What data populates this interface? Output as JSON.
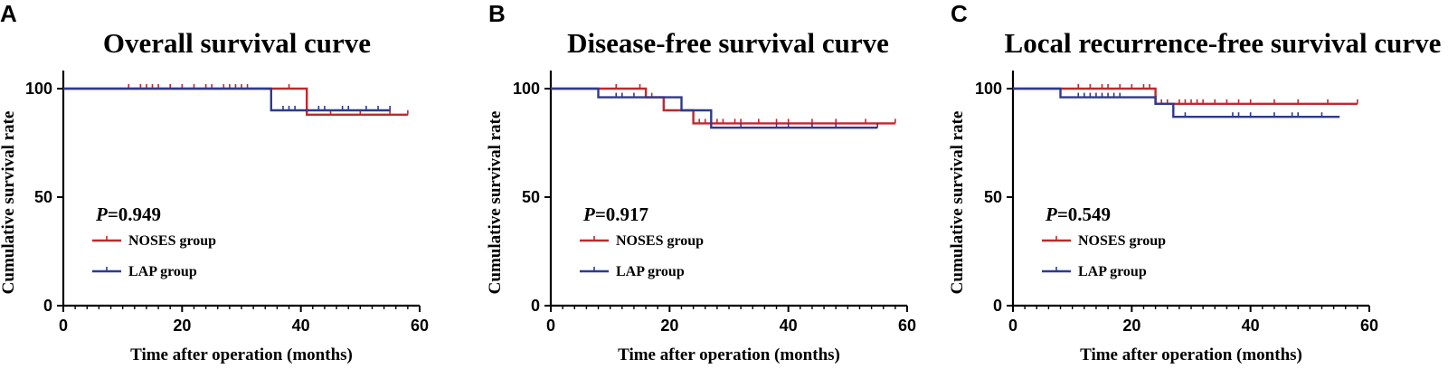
{
  "chart_data": [
    {
      "type": "line",
      "panel": "A",
      "title": "Overall survival curve",
      "xlabel": "Time after operation (months)",
      "ylabel": "Cumulative survival rate",
      "xlim": [
        0,
        60
      ],
      "ylim": [
        0,
        100
      ],
      "xticks": [
        0,
        20,
        40,
        60
      ],
      "yticks": [
        0,
        50,
        100
      ],
      "p_label": "P",
      "p_value": "=0.949",
      "legend": [
        "NOSES group",
        "LAP group"
      ],
      "series": [
        {
          "name": "NOSES group",
          "color": "#c0282d",
          "steps": [
            [
              0,
              100
            ],
            [
              41,
              100
            ],
            [
              41,
              88
            ],
            [
              58,
              88
            ]
          ],
          "censored": [
            [
              11,
              100
            ],
            [
              13,
              100
            ],
            [
              14,
              100
            ],
            [
              15,
              100
            ],
            [
              16,
              100
            ],
            [
              18,
              100
            ],
            [
              20,
              100
            ],
            [
              22,
              100
            ],
            [
              24,
              100
            ],
            [
              25,
              100
            ],
            [
              27,
              100
            ],
            [
              28,
              100
            ],
            [
              29,
              100
            ],
            [
              30,
              100
            ],
            [
              31,
              100
            ],
            [
              38,
              100
            ],
            [
              45,
              88
            ],
            [
              50,
              88
            ],
            [
              55,
              88
            ],
            [
              58,
              88
            ]
          ]
        },
        {
          "name": "LAP group",
          "color": "#2e3a8c",
          "steps": [
            [
              0,
              100
            ],
            [
              35,
              100
            ],
            [
              35,
              90
            ],
            [
              55,
              90
            ]
          ],
          "censored": [
            [
              37,
              90
            ],
            [
              38,
              90
            ],
            [
              39,
              90
            ],
            [
              43,
              90
            ],
            [
              44,
              90
            ],
            [
              47,
              90
            ],
            [
              48,
              90
            ],
            [
              51,
              90
            ],
            [
              53,
              90
            ],
            [
              55,
              90
            ]
          ]
        }
      ]
    },
    {
      "type": "line",
      "panel": "B",
      "title": "Disease-free survival curve",
      "xlabel": "Time after operation (months)",
      "ylabel": "Cumulative survival rate",
      "xlim": [
        0,
        60
      ],
      "ylim": [
        0,
        100
      ],
      "xticks": [
        0,
        20,
        40,
        60
      ],
      "yticks": [
        0,
        50,
        100
      ],
      "p_label": "P",
      "p_value": "=0.917",
      "legend": [
        "NOSES group",
        "LAP group"
      ],
      "series": [
        {
          "name": "NOSES group",
          "color": "#c0282d",
          "steps": [
            [
              0,
              100
            ],
            [
              16,
              100
            ],
            [
              16,
              96
            ],
            [
              19,
              96
            ],
            [
              19,
              90
            ],
            [
              24,
              90
            ],
            [
              24,
              84
            ],
            [
              58,
              84
            ]
          ],
          "censored": [
            [
              11,
              100
            ],
            [
              15,
              100
            ],
            [
              17,
              96
            ],
            [
              22,
              90
            ],
            [
              25,
              84
            ],
            [
              26,
              84
            ],
            [
              28,
              84
            ],
            [
              29,
              84
            ],
            [
              31,
              84
            ],
            [
              32,
              84
            ],
            [
              35,
              84
            ],
            [
              38,
              84
            ],
            [
              40,
              84
            ],
            [
              44,
              84
            ],
            [
              48,
              84
            ],
            [
              53,
              84
            ],
            [
              58,
              84
            ]
          ]
        },
        {
          "name": "LAP group",
          "color": "#2e3a8c",
          "steps": [
            [
              0,
              100
            ],
            [
              8,
              100
            ],
            [
              8,
              96
            ],
            [
              22,
              96
            ],
            [
              22,
              90
            ],
            [
              27,
              90
            ],
            [
              27,
              82
            ],
            [
              55,
              82
            ]
          ],
          "censored": [
            [
              11,
              96
            ],
            [
              12,
              96
            ],
            [
              14,
              96
            ],
            [
              22,
              93
            ],
            [
              27,
              82
            ],
            [
              32,
              82
            ],
            [
              38,
              82
            ],
            [
              40,
              82
            ],
            [
              44,
              82
            ],
            [
              48,
              82
            ],
            [
              55,
              82
            ]
          ]
        }
      ]
    },
    {
      "type": "line",
      "panel": "C",
      "title": "Local recurrence-free survival curve",
      "xlabel": "Time after operation (months)",
      "ylabel": "Cumulative survival rate",
      "xlim": [
        0,
        60
      ],
      "ylim": [
        0,
        100
      ],
      "xticks": [
        0,
        20,
        40,
        60
      ],
      "yticks": [
        0,
        50,
        100
      ],
      "p_label": "P",
      "p_value": "=0.549",
      "legend": [
        "NOSES group",
        "LAP group"
      ],
      "series": [
        {
          "name": "NOSES group",
          "color": "#c0282d",
          "steps": [
            [
              0,
              100
            ],
            [
              24,
              100
            ],
            [
              24,
              93
            ],
            [
              58,
              93
            ]
          ],
          "censored": [
            [
              11,
              100
            ],
            [
              13,
              100
            ],
            [
              15,
              100
            ],
            [
              16,
              100
            ],
            [
              18,
              100
            ],
            [
              20,
              100
            ],
            [
              22,
              100
            ],
            [
              23,
              100
            ],
            [
              25,
              93
            ],
            [
              26,
              93
            ],
            [
              28,
              93
            ],
            [
              29,
              93
            ],
            [
              30,
              93
            ],
            [
              31,
              93
            ],
            [
              32,
              93
            ],
            [
              34,
              93
            ],
            [
              36,
              93
            ],
            [
              38,
              93
            ],
            [
              40,
              93
            ],
            [
              44,
              93
            ],
            [
              48,
              93
            ],
            [
              53,
              93
            ],
            [
              58,
              93
            ]
          ]
        },
        {
          "name": "LAP group",
          "color": "#2e3a8c",
          "steps": [
            [
              0,
              100
            ],
            [
              8,
              100
            ],
            [
              8,
              96
            ],
            [
              24,
              96
            ],
            [
              24,
              93
            ],
            [
              27,
              93
            ],
            [
              27,
              87
            ],
            [
              55,
              87
            ]
          ],
          "censored": [
            [
              11,
              96
            ],
            [
              12,
              96
            ],
            [
              13,
              96
            ],
            [
              14,
              96
            ],
            [
              15,
              96
            ],
            [
              16,
              96
            ],
            [
              17,
              96
            ],
            [
              18,
              96
            ],
            [
              29,
              87
            ],
            [
              37,
              87
            ],
            [
              38,
              87
            ],
            [
              40,
              87
            ],
            [
              44,
              87
            ],
            [
              47,
              87
            ],
            [
              48,
              87
            ],
            [
              52,
              87
            ]
          ]
        }
      ]
    }
  ]
}
